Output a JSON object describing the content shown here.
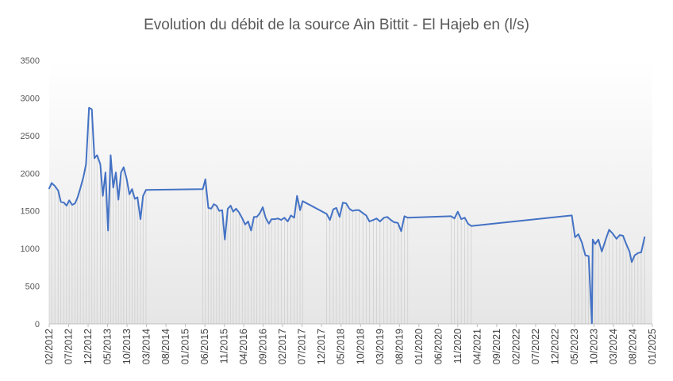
{
  "colors": {
    "line": "#4472C4",
    "drop_lines": "#cfcfcf",
    "plot_gradient_top": "#ffffff",
    "plot_gradient_bottom": "#e6e6e6",
    "text": "#595959"
  },
  "chart_data": {
    "type": "line",
    "title": "Evolution du débit de la source Ain Bittit - El Hajeb en (l/s)",
    "xlabel": "",
    "ylabel": "",
    "ylim": [
      0,
      3500
    ],
    "yticks": [
      0,
      500,
      1000,
      1500,
      2000,
      2500,
      3000,
      3500
    ],
    "xlim": [
      "2012-02",
      "2025-01"
    ],
    "xtick_labels": [
      "02/2012",
      "07/2012",
      "12/2012",
      "05/2013",
      "10/2013",
      "03/2014",
      "08/2014",
      "01/2015",
      "06/2015",
      "11/2015",
      "04/2016",
      "09/2016",
      "02/2017",
      "07/2017",
      "12/2017",
      "05/2018",
      "10/2018",
      "03/2019",
      "08/2019",
      "01/2020",
      "06/2020",
      "11/2020",
      "04/2021",
      "09/2021",
      "02/2022",
      "07/2022",
      "12/2022",
      "05/2023",
      "10/2023",
      "03/2024",
      "08/2024",
      "01/2025"
    ],
    "grid": false,
    "drop_lines": true,
    "legend": "none",
    "series": [
      {
        "points": [
          [
            "2012-02-01",
            1800
          ],
          [
            "2012-02-20",
            1870
          ],
          [
            "2012-03-15",
            1830
          ],
          [
            "2012-04-10",
            1770
          ],
          [
            "2012-05-01",
            1620
          ],
          [
            "2012-05-25",
            1610
          ],
          [
            "2012-06-15",
            1570
          ],
          [
            "2012-07-05",
            1640
          ],
          [
            "2012-07-28",
            1580
          ],
          [
            "2012-08-20",
            1600
          ],
          [
            "2012-09-10",
            1680
          ],
          [
            "2012-10-01",
            1800
          ],
          [
            "2012-10-25",
            1950
          ],
          [
            "2012-11-15",
            2120
          ],
          [
            "2012-12-08",
            2870
          ],
          [
            "2012-12-30",
            2850
          ],
          [
            "2013-01-20",
            2200
          ],
          [
            "2013-02-10",
            2240
          ],
          [
            "2013-03-05",
            2120
          ],
          [
            "2013-03-25",
            1700
          ],
          [
            "2013-04-15",
            2010
          ],
          [
            "2013-05-05",
            1240
          ],
          [
            "2013-05-25",
            2240
          ],
          [
            "2013-06-15",
            1810
          ],
          [
            "2013-07-05",
            2010
          ],
          [
            "2013-07-25",
            1650
          ],
          [
            "2013-08-15",
            2010
          ],
          [
            "2013-09-05",
            2080
          ],
          [
            "2013-09-28",
            1930
          ],
          [
            "2013-10-20",
            1720
          ],
          [
            "2013-11-10",
            1790
          ],
          [
            "2013-12-01",
            1660
          ],
          [
            "2013-12-22",
            1680
          ],
          [
            "2014-01-15",
            1390
          ],
          [
            "2014-02-05",
            1700
          ],
          [
            "2014-02-28",
            1780
          ],
          [
            "2015-05-15",
            1790
          ],
          [
            "2015-06-05",
            1920
          ],
          [
            "2015-06-28",
            1540
          ],
          [
            "2015-07-20",
            1530
          ],
          [
            "2015-08-10",
            1590
          ],
          [
            "2015-09-01",
            1570
          ],
          [
            "2015-09-22",
            1500
          ],
          [
            "2015-10-15",
            1510
          ],
          [
            "2015-11-05",
            1120
          ],
          [
            "2015-11-28",
            1530
          ],
          [
            "2015-12-20",
            1570
          ],
          [
            "2016-01-10",
            1490
          ],
          [
            "2016-02-01",
            1530
          ],
          [
            "2016-02-25",
            1480
          ],
          [
            "2016-03-20",
            1400
          ],
          [
            "2016-04-12",
            1320
          ],
          [
            "2016-05-05",
            1360
          ],
          [
            "2016-05-28",
            1240
          ],
          [
            "2016-06-20",
            1420
          ],
          [
            "2016-07-12",
            1420
          ],
          [
            "2016-08-05",
            1470
          ],
          [
            "2016-08-28",
            1550
          ],
          [
            "2016-09-20",
            1410
          ],
          [
            "2016-10-15",
            1330
          ],
          [
            "2016-11-05",
            1390
          ],
          [
            "2016-12-01",
            1390
          ],
          [
            "2016-12-25",
            1400
          ],
          [
            "2017-01-20",
            1380
          ],
          [
            "2017-02-15",
            1410
          ],
          [
            "2017-03-10",
            1360
          ],
          [
            "2017-04-05",
            1440
          ],
          [
            "2017-04-30",
            1410
          ],
          [
            "2017-05-22",
            1700
          ],
          [
            "2017-06-15",
            1510
          ],
          [
            "2017-07-05",
            1630
          ],
          [
            "2018-01-10",
            1460
          ],
          [
            "2018-02-05",
            1380
          ],
          [
            "2018-03-01",
            1520
          ],
          [
            "2018-03-25",
            1540
          ],
          [
            "2018-04-20",
            1420
          ],
          [
            "2018-05-15",
            1610
          ],
          [
            "2018-06-10",
            1600
          ],
          [
            "2018-07-05",
            1530
          ],
          [
            "2018-07-30",
            1500
          ],
          [
            "2018-08-25",
            1510
          ],
          [
            "2018-09-20",
            1510
          ],
          [
            "2018-10-20",
            1470
          ],
          [
            "2018-11-15",
            1440
          ],
          [
            "2018-12-10",
            1360
          ],
          [
            "2019-01-10",
            1380
          ],
          [
            "2019-02-05",
            1400
          ],
          [
            "2019-03-01",
            1360
          ],
          [
            "2019-04-01",
            1410
          ],
          [
            "2019-04-28",
            1420
          ],
          [
            "2019-05-25",
            1380
          ],
          [
            "2019-06-20",
            1350
          ],
          [
            "2019-07-20",
            1340
          ],
          [
            "2019-08-15",
            1230
          ],
          [
            "2019-09-10",
            1430
          ],
          [
            "2019-10-05",
            1410
          ],
          [
            "2020-09-10",
            1430
          ],
          [
            "2020-10-05",
            1400
          ],
          [
            "2020-11-01",
            1490
          ],
          [
            "2020-11-28",
            1390
          ],
          [
            "2020-12-25",
            1410
          ],
          [
            "2021-01-20",
            1330
          ],
          [
            "2021-02-15",
            1300
          ],
          [
            "2023-04-10",
            1440
          ],
          [
            "2023-05-05",
            1150
          ],
          [
            "2023-06-01",
            1190
          ],
          [
            "2023-06-28",
            1080
          ],
          [
            "2023-07-25",
            910
          ],
          [
            "2023-08-20",
            900
          ],
          [
            "2023-09-15",
            10
          ],
          [
            "2023-09-22",
            1120
          ],
          [
            "2023-10-10",
            1060
          ],
          [
            "2023-11-05",
            1120
          ],
          [
            "2023-12-01",
            960
          ],
          [
            "2024-01-01",
            1120
          ],
          [
            "2024-01-28",
            1250
          ],
          [
            "2024-02-25",
            1200
          ],
          [
            "2024-03-25",
            1130
          ],
          [
            "2024-04-20",
            1180
          ],
          [
            "2024-05-15",
            1170
          ],
          [
            "2024-06-10",
            1060
          ],
          [
            "2024-07-05",
            960
          ],
          [
            "2024-07-22",
            820
          ],
          [
            "2024-08-15",
            910
          ],
          [
            "2024-09-10",
            940
          ],
          [
            "2024-10-05",
            950
          ],
          [
            "2024-11-01",
            1150
          ]
        ]
      }
    ]
  }
}
